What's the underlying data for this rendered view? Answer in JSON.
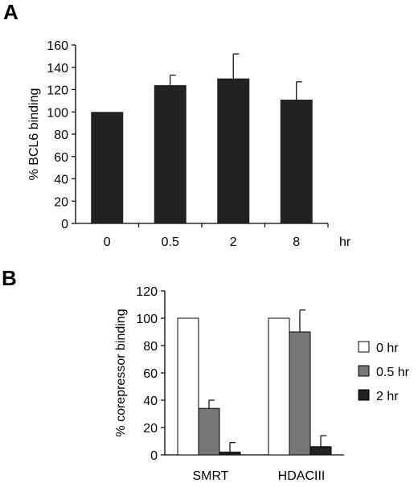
{
  "panels": {
    "a_label": "A",
    "b_label": "B"
  },
  "chart_data": [
    {
      "type": "bar",
      "categories": [
        "0",
        "0.5",
        "2",
        "8"
      ],
      "x_unit_label": "hr",
      "series": [
        {
          "values": [
            100,
            124,
            130,
            111
          ],
          "errors": [
            0,
            9,
            22,
            16
          ],
          "color": "#222222"
        }
      ],
      "ylabel": "% BCL6 binding",
      "ylim": [
        0,
        160
      ],
      "yticks": [
        0,
        20,
        40,
        60,
        80,
        100,
        120,
        140,
        160
      ],
      "grid": false
    },
    {
      "type": "bar",
      "categories": [
        "SMRT",
        "HDACIII"
      ],
      "series": [
        {
          "name": "0 hr",
          "values": [
            100,
            100
          ],
          "errors": [
            0,
            0
          ],
          "color": "#ffffff"
        },
        {
          "name": "0.5 hr",
          "values": [
            34,
            90
          ],
          "errors": [
            6,
            16
          ],
          "color": "#777777"
        },
        {
          "name": "2 hr",
          "values": [
            2,
            6
          ],
          "errors": [
            7,
            8
          ],
          "color": "#222222"
        }
      ],
      "ylabel": "% corepressor binding",
      "ylim": [
        0,
        120
      ],
      "yticks": [
        0,
        20,
        40,
        60,
        80,
        100,
        120
      ],
      "legend": "right",
      "grid": false
    }
  ]
}
